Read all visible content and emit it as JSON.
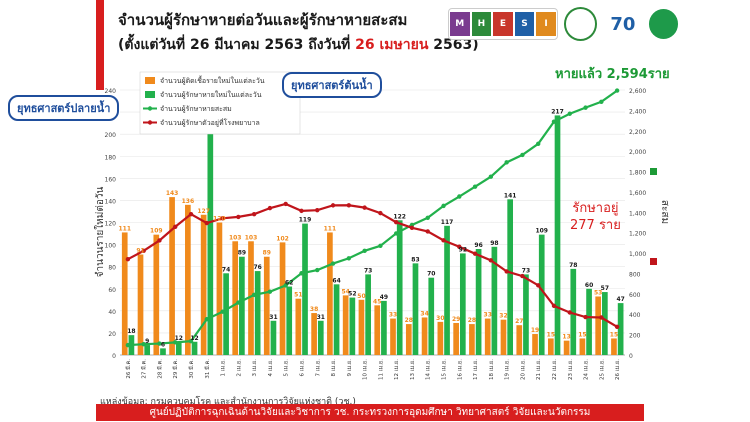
{
  "header": {
    "title": "จำนวนผู้รักษาหายต่อวันและผู้รักษาหายสะสม",
    "subtitle_prefix": "(ตั้งแต่วันที่ 26 มีนาคม 2563 ถึงวันที่ ",
    "subtitle_highlight": "26 เมษายน",
    "subtitle_suffix": " 2563)"
  },
  "logos": {
    "mhesi": [
      "M",
      "H",
      "E",
      "S",
      "I"
    ],
    "seventy": "70"
  },
  "callouts": {
    "left": "ยุทธศาสตร์ปลายน้ำ",
    "right": "ยุทธศาสตร์ต้นน้ำ"
  },
  "annotations": {
    "cumulative": "หายแล้ว 2,594ราย",
    "hosp_line1": "รักษาอยู่",
    "hosp_line2": "277 ราย"
  },
  "source": "แหล่งข้อมูล: กรมควบคุมโรค และสำนักงานการวิจัยแห่งชาติ (วช.)",
  "footer": "ศูนย์ปฏิบัติการฉุกเฉินด้านวิจัยและวิชาการ   วช.   กระทรวงการอุดมศึกษา วิทยาศาสตร์ วิจัยและนวัตกรรม",
  "colors": {
    "orange": "#f08a1c",
    "green": "#22b14c",
    "darkgreen": "#1d9a36",
    "red": "#c0151b",
    "accent": "#d81e1e"
  },
  "chart_data": {
    "type": "bar",
    "categories": [
      "26 มี.ค.",
      "27 มี.ค.",
      "28 มี.ค.",
      "29 มี.ค.",
      "30 มี.ค.",
      "31 มี.ค.",
      "1 เม.ย.",
      "2 เม.ย.",
      "3 เม.ย.",
      "4 เม.ย.",
      "5 เม.ย.",
      "6 เม.ย.",
      "7 เม.ย.",
      "8 เม.ย.",
      "9 เม.ย.",
      "10 เม.ย.",
      "11 เม.ย.",
      "12 เม.ย.",
      "13 เม.ย.",
      "14 เม.ย.",
      "15 เม.ย.",
      "16 เม.ย.",
      "17 เม.ย.",
      "18 เม.ย.",
      "19 เม.ย.",
      "20 เม.ย.",
      "21 เม.ย.",
      "22 เม.ย.",
      "23 เม.ย.",
      "24 เม.ย.",
      "25 เม.ย.",
      "26 เม.ย."
    ],
    "ylabel": "จำนวนรายใหม่ต่อวัน",
    "y2label": "สะสม",
    "ylim": [
      0,
      240
    ],
    "y2lim": [
      0,
      2600
    ],
    "yticks": [
      0,
      20,
      40,
      60,
      80,
      100,
      120,
      140,
      160,
      180,
      200,
      220,
      240
    ],
    "y2ticks": [
      0,
      200,
      400,
      600,
      800,
      1000,
      1200,
      1400,
      1600,
      1800,
      2000,
      2200,
      2400,
      2600
    ],
    "series": [
      {
        "name": "จำนวนผู้ติดเชื้อรายใหม่ในแต่ละวัน",
        "type": "bar",
        "values": [
          111,
          91,
          109,
          143,
          136,
          127,
          120,
          103,
          103,
          89,
          102,
          51,
          38,
          111,
          54,
          50,
          45,
          33,
          28,
          34,
          30,
          29,
          28,
          33,
          32,
          27,
          19,
          15,
          13,
          15,
          53,
          15
        ]
      },
      {
        "name": "จำนวนผู้รักษาหายใหม่ในแต่ละวัน",
        "type": "bar",
        "values": [
          18,
          9,
          6,
          12,
          12,
          215,
          74,
          89,
          76,
          31,
          62,
          119,
          31,
          64,
          52,
          73,
          49,
          122,
          83,
          70,
          117,
          92,
          96,
          98,
          141,
          73,
          109,
          217,
          78,
          60,
          57,
          47
        ]
      },
      {
        "name": "จำนวนผู้รักษาหายสะสม",
        "type": "line",
        "values": [
          97,
          106,
          112,
          124,
          136,
          351,
          425,
          514,
          590,
          621,
          683,
          802,
          833,
          897,
          949,
          1022,
          1071,
          1193,
          1276,
          1346,
          1463,
          1555,
          1651,
          1749,
          1890,
          1963,
          2072,
          2289,
          2367,
          2427,
          2484,
          2594
        ]
      },
      {
        "name": "จำนวนผู้รักษาตัวอยู่ที่โรงพยาบาล",
        "type": "line",
        "values": [
          940,
          1022,
          1124,
          1258,
          1382,
          1294,
          1341,
          1355,
          1382,
          1441,
          1482,
          1414,
          1421,
          1468,
          1469,
          1446,
          1392,
          1303,
          1248,
          1212,
          1125,
          1062,
          994,
          929,
          820,
          774,
          684,
          482,
          417,
          372,
          368,
          277
        ]
      }
    ]
  }
}
